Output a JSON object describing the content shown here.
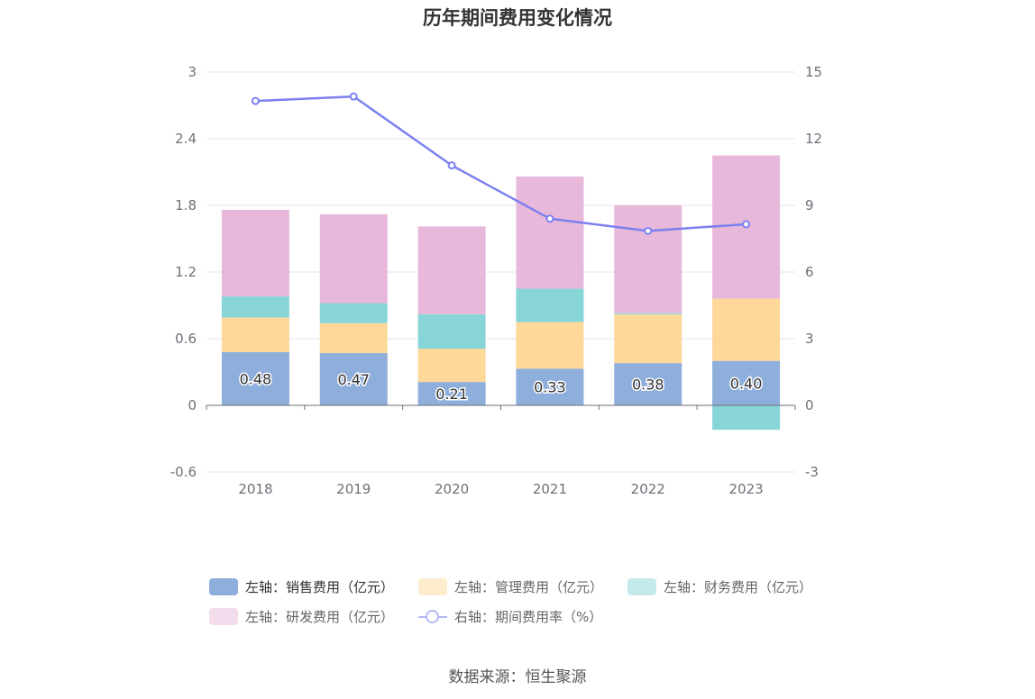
{
  "title": "历年期间费用变化情况",
  "source": "数据来源：恒生聚源",
  "chart_data": {
    "type": "bar",
    "stacked": true,
    "categories": [
      "2018",
      "2019",
      "2020",
      "2021",
      "2022",
      "2023"
    ],
    "y_left": {
      "min": -0.6,
      "max": 3,
      "ticks": [
        "-0.6",
        "0",
        "0.6",
        "1.2",
        "1.8",
        "2.4",
        "3"
      ]
    },
    "y_right": {
      "min": -3,
      "max": 15,
      "ticks": [
        "-3",
        "0",
        "3",
        "6",
        "9",
        "12",
        "15"
      ]
    },
    "grid": true,
    "legend_position": "bottom",
    "series": [
      {
        "name": "左轴：销售费用（亿元）",
        "axis": "left",
        "color": "#8eaedb",
        "legend_color": "#8eaedb",
        "values": [
          0.48,
          0.47,
          0.21,
          0.33,
          0.38,
          0.4
        ],
        "labels": [
          "0.48",
          "0.47",
          "0.21",
          "0.33",
          "0.38",
          "0.40"
        ]
      },
      {
        "name": "左轴：管理费用（亿元）",
        "axis": "left",
        "color": "#fdd899",
        "legend_color": "#fdeccd",
        "values": [
          0.31,
          0.27,
          0.3,
          0.42,
          0.44,
          0.56
        ]
      },
      {
        "name": "左轴：财务费用（亿元）",
        "axis": "left",
        "color": "#88d5d8",
        "legend_color": "#c4eaec",
        "values": [
          0.19,
          0.18,
          0.31,
          0.3,
          0.01,
          -0.22
        ]
      },
      {
        "name": "左轴：研发费用（亿元）",
        "axis": "left",
        "color": "#e8b8da",
        "legend_color": "#f3dcec",
        "values": [
          0.78,
          0.8,
          0.79,
          1.01,
          0.97,
          1.29
        ]
      },
      {
        "name": "右轴：期间费用率（%）",
        "axis": "right",
        "type": "line",
        "color": "#7b80ef",
        "values": [
          13.7,
          13.9,
          10.8,
          8.4,
          7.85,
          8.15
        ]
      }
    ]
  }
}
